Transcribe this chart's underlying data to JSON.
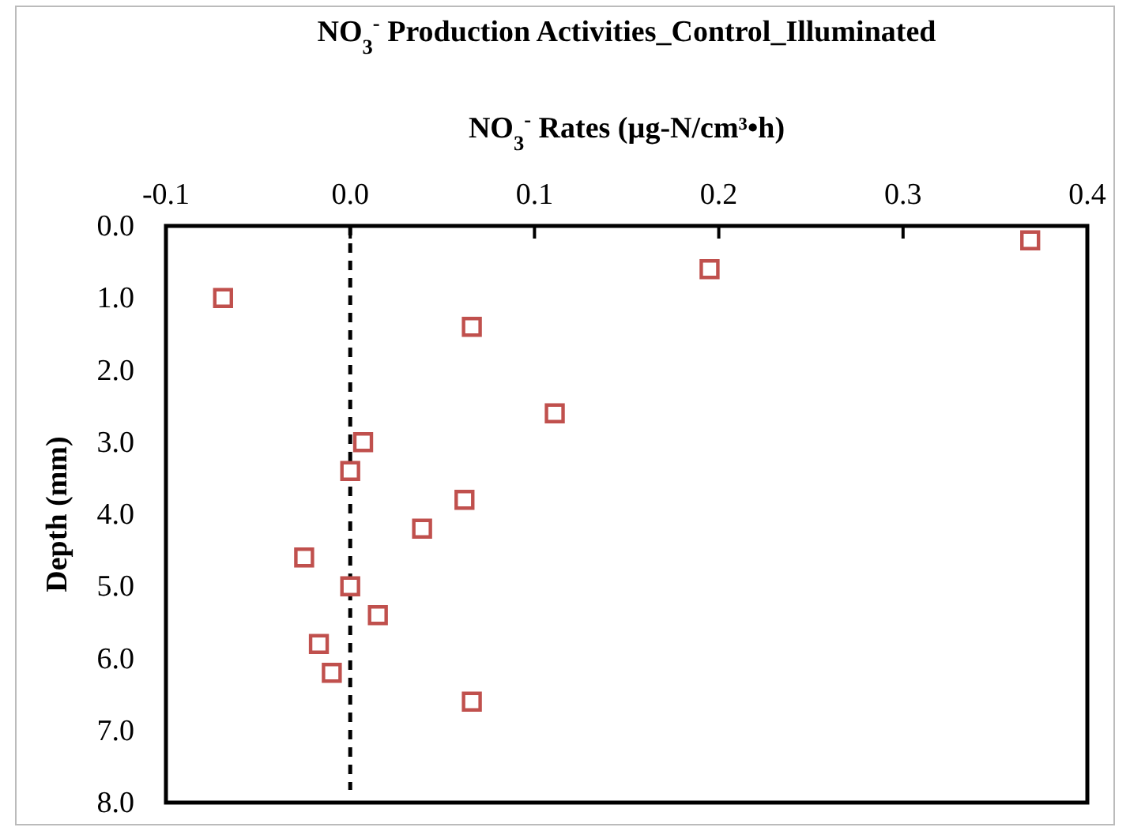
{
  "chart_data": {
    "type": "scatter",
    "title": "NO$_{3}$$^{-}$ Production Activities_Control_Illuminated",
    "xlabel": "NO$_{3}$$^{-}$ Rates (µg-N/cm³•h)",
    "ylabel": "Depth (mm)",
    "x": [
      0.369,
      0.195,
      -0.069,
      0.066,
      0.111,
      0.007,
      0.0,
      0.062,
      0.039,
      -0.025,
      0.0,
      0.015,
      -0.017,
      -0.01,
      0.066
    ],
    "series": [
      {
        "color": "#c0504d",
        "values": [
          0.2,
          0.6,
          1.0,
          1.4,
          2.6,
          3.0,
          3.4,
          3.8,
          4.2,
          4.6,
          5.0,
          5.4,
          5.8,
          6.2,
          6.6
        ]
      }
    ],
    "xlim": [
      -0.1,
      0.4
    ],
    "xticks": [
      {
        "value": -0.1,
        "label": "-0.1"
      },
      {
        "value": 0,
        "label": "0.0"
      },
      {
        "value": 0.1,
        "label": "0.1"
      },
      {
        "value": 0.2,
        "label": "0.2"
      },
      {
        "value": 0.3,
        "label": "0.3"
      },
      {
        "value": 0.4,
        "label": "0.4"
      }
    ],
    "ylim": [
      8,
      0
    ],
    "yticks": [
      {
        "value": 0,
        "label": "0.0"
      },
      {
        "value": 1,
        "label": "1.0"
      },
      {
        "value": 2,
        "label": "2.0"
      },
      {
        "value": 3,
        "label": "3.0"
      },
      {
        "value": 4,
        "label": "4.0"
      },
      {
        "value": 5,
        "label": "5.0"
      },
      {
        "value": 6,
        "label": "6.0"
      },
      {
        "value": 7,
        "label": "7.0"
      },
      {
        "value": 8,
        "label": "8.0"
      }
    ],
    "ref_lines": [
      {
        "axis": "x",
        "value": 0,
        "color": "#000000",
        "line_style": "dashed"
      }
    ],
    "marker": "square",
    "grid": false
  }
}
